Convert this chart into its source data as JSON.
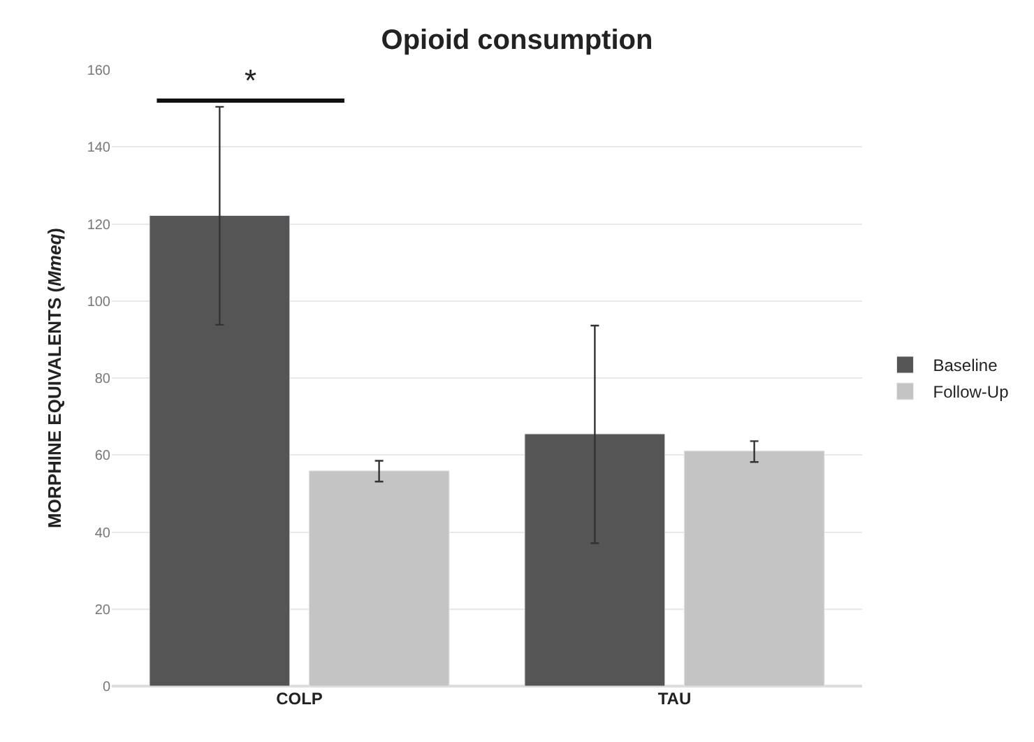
{
  "chart_data": {
    "type": "bar",
    "title": "Opioid consumption",
    "ylabel": "MORPHINE EQUIVALENTS (Mmeq)",
    "categories": [
      "COLP",
      "TAU"
    ],
    "series": [
      {
        "name": "Baseline",
        "color": "#555555",
        "values": [
          122.2,
          65.5
        ],
        "errors": [
          [
            93.8,
            150.4
          ],
          [
            37.1,
            93.6
          ]
        ]
      },
      {
        "name": "Follow-Up",
        "color": "#c4c4c4",
        "values": [
          55.9,
          61.1
        ],
        "errors": [
          [
            53.1,
            58.5
          ],
          [
            58.2,
            63.6
          ]
        ]
      }
    ],
    "annotations": [
      "*"
    ],
    "ylim": [
      0,
      160
    ],
    "yticks": [
      0,
      20,
      40,
      60,
      80,
      100,
      120,
      140,
      160
    ],
    "grid": "y",
    "legend": "right"
  }
}
